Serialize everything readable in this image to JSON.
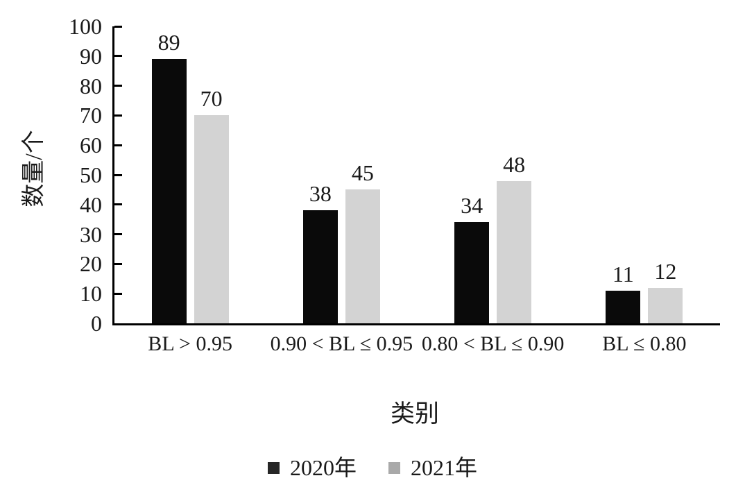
{
  "chart_data": {
    "type": "bar",
    "title": "",
    "categories": [
      "BL > 0.95",
      "0.90 < BL ≤ 0.95",
      "0.80 < BL ≤ 0.90",
      "BL ≤ 0.80"
    ],
    "series": [
      {
        "name": "2020年",
        "values": [
          89,
          38,
          34,
          11
        ],
        "bar_color": "#0a0a0a",
        "legend_color": "#262626"
      },
      {
        "name": "2021年",
        "values": [
          70,
          45,
          48,
          12
        ],
        "bar_color": "#d3d3d3",
        "legend_color": "#a9a9a9"
      }
    ],
    "xlabel": "类别",
    "ylabel": "数量/个",
    "ylim": [
      0,
      100
    ],
    "yticks": [
      0,
      10,
      20,
      30,
      40,
      50,
      60,
      70,
      80,
      90,
      100
    ],
    "grid": false,
    "legend_position": "bottom",
    "bar_value_labels_shown": true,
    "axis_color": "#000000",
    "text_color": "#1a1a1a",
    "background_color": "#ffffff"
  }
}
